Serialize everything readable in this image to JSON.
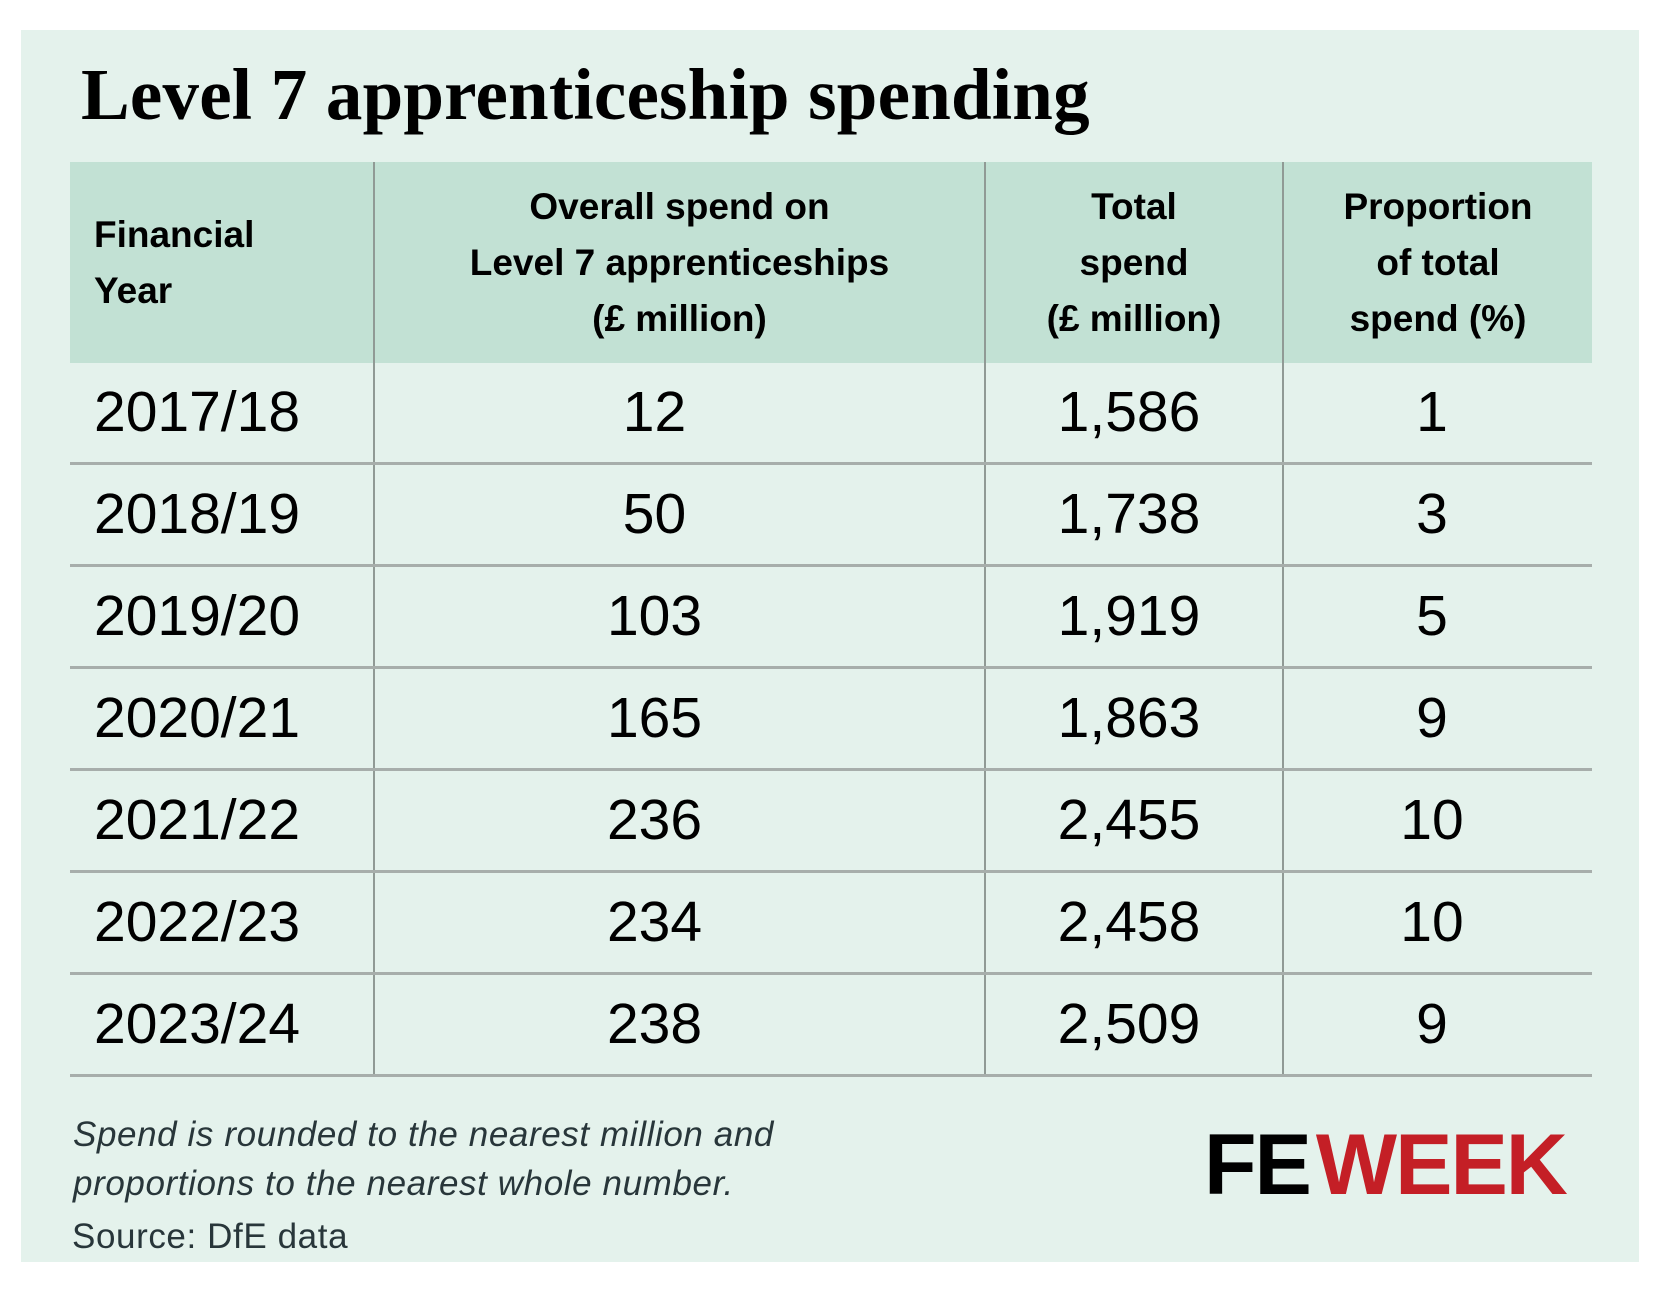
{
  "title": "Level 7 apprenticeship spending",
  "table": {
    "headers": [
      {
        "lines": [
          "Financial",
          "Year"
        ]
      },
      {
        "lines": [
          "Overall spend on",
          "Level 7 apprenticeships",
          "(£ million)"
        ]
      },
      {
        "lines": [
          "Total",
          "spend",
          "(£ million)"
        ]
      },
      {
        "lines": [
          "Proportion",
          "of total",
          "spend (%)"
        ]
      }
    ],
    "rows": [
      [
        "2017/18",
        "12",
        "1,586",
        "1"
      ],
      [
        "2018/19",
        "50",
        "1,738",
        "3"
      ],
      [
        "2019/20",
        "103",
        "1,919",
        "5"
      ],
      [
        "2020/21",
        "165",
        "1,863",
        "9"
      ],
      [
        "2021/22",
        "236",
        "2,455",
        "10"
      ],
      [
        "2022/23",
        "234",
        "2,458",
        "10"
      ],
      [
        "2023/24",
        "238",
        "2,509",
        "9"
      ]
    ]
  },
  "footnote": {
    "lines": [
      "Spend is rounded to the nearest million and",
      "proportions to the nearest whole number."
    ]
  },
  "source": "Source: DfE data",
  "logo": {
    "part1": "FE",
    "part2": "WEEK",
    "part1_color": "#000000",
    "part2_color": "#c41f26"
  },
  "colors": {
    "panel_background": "#e4f2ec",
    "header_background": "#c2e1d4",
    "grid_line": "#a7aeab",
    "footnote_text": "#28363a"
  }
}
